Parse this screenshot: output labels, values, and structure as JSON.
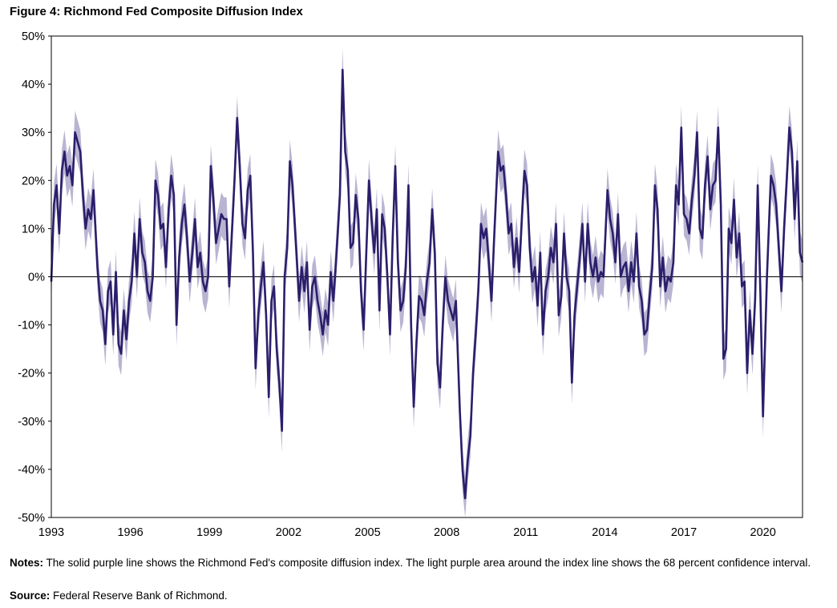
{
  "figure": {
    "title": "Figure 4: Richmond Fed Composite Diffusion Index",
    "notes_label": "Notes:",
    "notes_text": " The solid purple line shows the Richmond Fed's composite diffusion index. The light purple area around the index line shows the 68 percent confidence interval.",
    "source_label": "Source:",
    "source_text": " Federal Reserve Bank of Richmond."
  },
  "colors": {
    "line": "#2a1f6b",
    "band": "#b9b4d2",
    "axis": "#000000"
  },
  "chart_data": {
    "type": "line",
    "title": "Figure 4: Richmond Fed Composite Diffusion Index",
    "xlabel": "",
    "ylabel": "",
    "xlim": [
      1993,
      2021.5
    ],
    "ylim": [
      -50,
      50
    ],
    "x_ticks": [
      1993,
      1996,
      1999,
      2002,
      2005,
      2008,
      2011,
      2014,
      2017,
      2020
    ],
    "y_ticks": [
      50,
      40,
      30,
      20,
      10,
      0,
      -10,
      -20,
      -30,
      -40,
      -50
    ],
    "y_tick_labels": [
      "50%",
      "40%",
      "30%",
      "20%",
      "10%",
      "0%",
      "-10%",
      "-20%",
      "-30%",
      "-40%",
      "-50%"
    ],
    "zero_line": true,
    "grid": false,
    "band_halfwidth": 4.5,
    "series": [
      {
        "points": [
          [
            1993.0,
            -1
          ],
          [
            1993.1,
            15
          ],
          [
            1993.2,
            19
          ],
          [
            1993.3,
            9
          ],
          [
            1993.4,
            22
          ],
          [
            1993.5,
            26
          ],
          [
            1993.6,
            21
          ],
          [
            1993.7,
            23
          ],
          [
            1993.8,
            19
          ],
          [
            1993.9,
            30
          ],
          [
            1994.0,
            28
          ],
          [
            1994.1,
            26
          ],
          [
            1994.2,
            17
          ],
          [
            1994.3,
            10
          ],
          [
            1994.4,
            14
          ],
          [
            1994.5,
            12
          ],
          [
            1994.6,
            18
          ],
          [
            1994.75,
            2
          ],
          [
            1994.85,
            -5
          ],
          [
            1994.95,
            -7
          ],
          [
            1995.05,
            -14
          ],
          [
            1995.15,
            -3
          ],
          [
            1995.25,
            -1
          ],
          [
            1995.35,
            -12
          ],
          [
            1995.45,
            1
          ],
          [
            1995.55,
            -14
          ],
          [
            1995.65,
            -16
          ],
          [
            1995.75,
            -7
          ],
          [
            1995.85,
            -13
          ],
          [
            1995.95,
            -5
          ],
          [
            1996.05,
            -1
          ],
          [
            1996.15,
            9
          ],
          [
            1996.25,
            0
          ],
          [
            1996.35,
            12
          ],
          [
            1996.45,
            5
          ],
          [
            1996.55,
            3
          ],
          [
            1996.65,
            -3
          ],
          [
            1996.75,
            -5
          ],
          [
            1996.85,
            0
          ],
          [
            1996.95,
            20
          ],
          [
            1997.05,
            17
          ],
          [
            1997.15,
            10
          ],
          [
            1997.25,
            11
          ],
          [
            1997.35,
            2
          ],
          [
            1997.45,
            14
          ],
          [
            1997.55,
            21
          ],
          [
            1997.65,
            17
          ],
          [
            1997.75,
            -10
          ],
          [
            1997.85,
            4
          ],
          [
            1997.95,
            11
          ],
          [
            1998.05,
            15
          ],
          [
            1998.15,
            8
          ],
          [
            1998.25,
            -1
          ],
          [
            1998.35,
            5
          ],
          [
            1998.45,
            12
          ],
          [
            1998.55,
            2
          ],
          [
            1998.65,
            5
          ],
          [
            1998.75,
            -1
          ],
          [
            1998.85,
            -3
          ],
          [
            1998.95,
            0
          ],
          [
            1999.05,
            23
          ],
          [
            1999.15,
            16
          ],
          [
            1999.25,
            7
          ],
          [
            1999.35,
            10
          ],
          [
            1999.45,
            13
          ],
          [
            1999.55,
            12
          ],
          [
            1999.65,
            12
          ],
          [
            1999.75,
            -2
          ],
          [
            1999.85,
            9
          ],
          [
            1999.95,
            20
          ],
          [
            2000.05,
            33
          ],
          [
            2000.15,
            23
          ],
          [
            2000.25,
            11
          ],
          [
            2000.35,
            8
          ],
          [
            2000.45,
            18
          ],
          [
            2000.55,
            21
          ],
          [
            2000.65,
            5
          ],
          [
            2000.75,
            -19
          ],
          [
            2000.85,
            -8
          ],
          [
            2000.95,
            -2
          ],
          [
            2001.05,
            3
          ],
          [
            2001.15,
            -8
          ],
          [
            2001.25,
            -25
          ],
          [
            2001.35,
            -5
          ],
          [
            2001.45,
            -2
          ],
          [
            2001.55,
            -15
          ],
          [
            2001.65,
            -22
          ],
          [
            2001.75,
            -32
          ],
          [
            2001.85,
            0
          ],
          [
            2001.95,
            6
          ],
          [
            2002.05,
            24
          ],
          [
            2002.15,
            19
          ],
          [
            2002.3,
            5
          ],
          [
            2002.4,
            -5
          ],
          [
            2002.5,
            2
          ],
          [
            2002.6,
            -3
          ],
          [
            2002.7,
            3
          ],
          [
            2002.8,
            -11
          ],
          [
            2002.9,
            -2
          ],
          [
            2003.0,
            0
          ],
          [
            2003.1,
            -5
          ],
          [
            2003.2,
            -8
          ],
          [
            2003.3,
            -12
          ],
          [
            2003.4,
            -7
          ],
          [
            2003.5,
            -10
          ],
          [
            2003.6,
            1
          ],
          [
            2003.7,
            -5
          ],
          [
            2003.8,
            3
          ],
          [
            2003.95,
            17
          ],
          [
            2004.05,
            43
          ],
          [
            2004.15,
            26
          ],
          [
            2004.25,
            22
          ],
          [
            2004.35,
            6
          ],
          [
            2004.45,
            7
          ],
          [
            2004.55,
            17
          ],
          [
            2004.65,
            12
          ],
          [
            2004.75,
            -3
          ],
          [
            2004.85,
            -11
          ],
          [
            2004.95,
            5
          ],
          [
            2005.05,
            20
          ],
          [
            2005.15,
            12
          ],
          [
            2005.25,
            5
          ],
          [
            2005.35,
            14
          ],
          [
            2005.45,
            -7
          ],
          [
            2005.55,
            13
          ],
          [
            2005.65,
            10
          ],
          [
            2005.75,
            0
          ],
          [
            2005.85,
            -12
          ],
          [
            2005.95,
            8
          ],
          [
            2006.05,
            23
          ],
          [
            2006.15,
            3
          ],
          [
            2006.25,
            -7
          ],
          [
            2006.35,
            -5
          ],
          [
            2006.45,
            2
          ],
          [
            2006.55,
            19
          ],
          [
            2006.65,
            -10
          ],
          [
            2006.75,
            -27
          ],
          [
            2006.85,
            -14
          ],
          [
            2006.95,
            -4
          ],
          [
            2007.05,
            -5
          ],
          [
            2007.15,
            -8
          ],
          [
            2007.25,
            -1
          ],
          [
            2007.35,
            3
          ],
          [
            2007.45,
            14
          ],
          [
            2007.55,
            5
          ],
          [
            2007.65,
            -18
          ],
          [
            2007.75,
            -23
          ],
          [
            2007.85,
            -10
          ],
          [
            2007.95,
            0
          ],
          [
            2008.05,
            -5
          ],
          [
            2008.15,
            -7
          ],
          [
            2008.25,
            -9
          ],
          [
            2008.35,
            -5
          ],
          [
            2008.5,
            -28
          ],
          [
            2008.6,
            -40
          ],
          [
            2008.7,
            -46
          ],
          [
            2008.8,
            -38
          ],
          [
            2008.9,
            -33
          ],
          [
            2009.0,
            -20
          ],
          [
            2009.1,
            -12
          ],
          [
            2009.2,
            -3
          ],
          [
            2009.3,
            11
          ],
          [
            2009.4,
            8
          ],
          [
            2009.5,
            10
          ],
          [
            2009.6,
            3
          ],
          [
            2009.7,
            -5
          ],
          [
            2009.8,
            8
          ],
          [
            2009.95,
            26
          ],
          [
            2010.05,
            22
          ],
          [
            2010.15,
            23
          ],
          [
            2010.25,
            17
          ],
          [
            2010.35,
            9
          ],
          [
            2010.45,
            11
          ],
          [
            2010.55,
            2
          ],
          [
            2010.65,
            8
          ],
          [
            2010.75,
            1
          ],
          [
            2010.85,
            12
          ],
          [
            2010.95,
            22
          ],
          [
            2011.05,
            19
          ],
          [
            2011.15,
            6
          ],
          [
            2011.25,
            -1
          ],
          [
            2011.35,
            2
          ],
          [
            2011.45,
            -6
          ],
          [
            2011.55,
            5
          ],
          [
            2011.65,
            -12
          ],
          [
            2011.75,
            -3
          ],
          [
            2011.85,
            0
          ],
          [
            2011.95,
            6
          ],
          [
            2012.05,
            3
          ],
          [
            2012.15,
            11
          ],
          [
            2012.25,
            -8
          ],
          [
            2012.35,
            -4
          ],
          [
            2012.45,
            9
          ],
          [
            2012.55,
            0
          ],
          [
            2012.65,
            -3
          ],
          [
            2012.75,
            -22
          ],
          [
            2012.85,
            -8
          ],
          [
            2012.95,
            -2
          ],
          [
            2013.05,
            4
          ],
          [
            2013.15,
            11
          ],
          [
            2013.25,
            -1
          ],
          [
            2013.35,
            11
          ],
          [
            2013.45,
            3
          ],
          [
            2013.55,
            0
          ],
          [
            2013.65,
            4
          ],
          [
            2013.75,
            -1
          ],
          [
            2013.85,
            1
          ],
          [
            2013.95,
            0
          ],
          [
            2014.1,
            18
          ],
          [
            2014.2,
            12
          ],
          [
            2014.3,
            9
          ],
          [
            2014.4,
            3
          ],
          [
            2014.5,
            13
          ],
          [
            2014.6,
            0
          ],
          [
            2014.7,
            2
          ],
          [
            2014.8,
            3
          ],
          [
            2014.9,
            -3
          ],
          [
            2015.0,
            3
          ],
          [
            2015.1,
            -1
          ],
          [
            2015.2,
            9
          ],
          [
            2015.3,
            -2
          ],
          [
            2015.4,
            -5
          ],
          [
            2015.5,
            -12
          ],
          [
            2015.6,
            -11
          ],
          [
            2015.7,
            -4
          ],
          [
            2015.8,
            2
          ],
          [
            2015.9,
            19
          ],
          [
            2016.0,
            14
          ],
          [
            2016.1,
            -2
          ],
          [
            2016.2,
            4
          ],
          [
            2016.3,
            -3
          ],
          [
            2016.4,
            0
          ],
          [
            2016.5,
            -1
          ],
          [
            2016.6,
            3
          ],
          [
            2016.7,
            19
          ],
          [
            2016.8,
            15
          ],
          [
            2016.9,
            31
          ],
          [
            2017.0,
            13
          ],
          [
            2017.1,
            12
          ],
          [
            2017.2,
            9
          ],
          [
            2017.3,
            16
          ],
          [
            2017.4,
            21
          ],
          [
            2017.5,
            30
          ],
          [
            2017.6,
            10
          ],
          [
            2017.7,
            8
          ],
          [
            2017.8,
            19
          ],
          [
            2017.9,
            25
          ],
          [
            2018.0,
            14
          ],
          [
            2018.1,
            19
          ],
          [
            2018.2,
            20
          ],
          [
            2018.3,
            31
          ],
          [
            2018.4,
            15
          ],
          [
            2018.5,
            -17
          ],
          [
            2018.6,
            -15
          ],
          [
            2018.7,
            10
          ],
          [
            2018.8,
            7
          ],
          [
            2018.9,
            16
          ],
          [
            2019.0,
            4
          ],
          [
            2019.1,
            9
          ],
          [
            2019.2,
            -2
          ],
          [
            2019.3,
            -1
          ],
          [
            2019.4,
            -20
          ],
          [
            2019.5,
            -7
          ],
          [
            2019.6,
            -16
          ],
          [
            2019.7,
            -5
          ],
          [
            2019.8,
            19
          ],
          [
            2019.9,
            -3
          ],
          [
            2020.0,
            -29
          ],
          [
            2020.15,
            0
          ],
          [
            2020.3,
            21
          ],
          [
            2020.4,
            19
          ],
          [
            2020.5,
            15
          ],
          [
            2020.6,
            6
          ],
          [
            2020.7,
            -3
          ],
          [
            2020.8,
            10
          ],
          [
            2020.9,
            20
          ],
          [
            2021.0,
            31
          ],
          [
            2021.1,
            26
          ],
          [
            2021.2,
            12
          ],
          [
            2021.3,
            24
          ],
          [
            2021.4,
            5
          ],
          [
            2021.5,
            3
          ]
        ]
      }
    ]
  }
}
